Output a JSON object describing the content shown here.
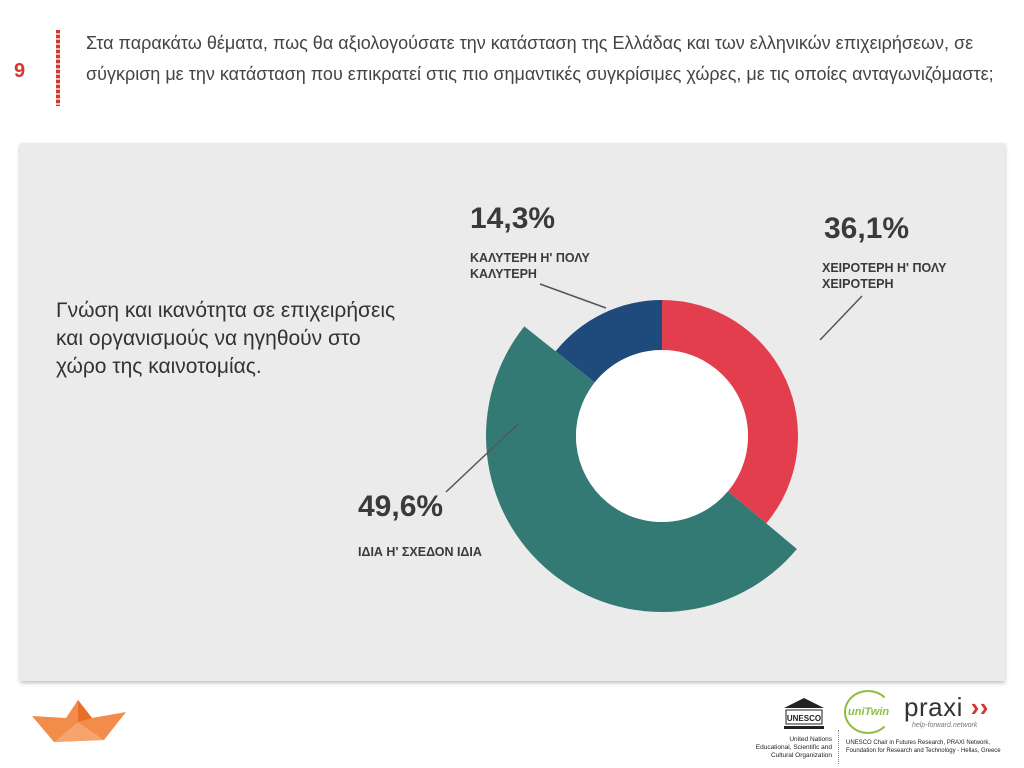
{
  "slide": {
    "number": "9",
    "question": "Στα παρακάτω θέματα, πως θα αξιολογούσατε την κατάσταση της Ελλάδας και των ελληνικών επιχειρήσεων, σε σύγκριση με την κατάσταση που επικρατεί στις πιο σημαντικές συγκρίσιμες χώρες, με τις οποίες ανταγωνιζόμαστε;",
    "topic": "Γνώση και ικανότητα σε επιχειρήσεις και οργανισμούς να ηγηθούν στο χώρο της καινοτομίας."
  },
  "chart_data": {
    "type": "pie",
    "style": "donut",
    "title": "Γνώση και ικανότητα σε επιχειρήσεις και οργανισμούς να ηγηθούν στο χώρο της καινοτομίας.",
    "segments": [
      {
        "name": "ΧΕΙΡΟΤΕΡΗ Η' ΠΟΛΥ ΧΕΙΡΟΤΕΡΗ",
        "label_lines": [
          "ΧΕΙΡΟΤΕΡΗ Η' ΠΟΛΥ",
          "ΧΕΙΡΟΤΕΡΗ"
        ],
        "value": 36.1,
        "display": "36,1%",
        "color": "#e23e4e",
        "exploded": false
      },
      {
        "name": "ΙΔΙΑ Η' ΣΧΕΔΟΝ ΙΔΙΑ",
        "label_lines": [
          "ΙΔΙΑ Η' ΣΧΕΔΟΝ ΙΔΙΑ"
        ],
        "value": 49.6,
        "display": "49,6%",
        "color": "#347a74",
        "exploded": true
      },
      {
        "name": "ΚΑΛΥΤΕΡΗ Η' ΠΟΛΥ ΚΑΛΥΤΕΡΗ",
        "label_lines": [
          "ΚΑΛΥΤΕΡΗ Η' ΠΟΛΥ",
          "ΚΑΛΥΤΕΡΗ"
        ],
        "value": 14.3,
        "display": "14,3%",
        "color": "#1f4a7c",
        "exploded": false
      }
    ]
  },
  "footer": {
    "unesco_logo_text": "UNESCO",
    "unesco_lines": [
      "United Nations",
      "Educational, Scientific and",
      "Cultural Organization"
    ],
    "unitwin_logo": "uniTwin",
    "praxi_logo": "praxi",
    "praxi_tagline": "help-forward.network",
    "chair_text": "UNESCO Chair in Futures Research, PRAXI Network, Foundation for Research and Technology - Hellas, Greece"
  },
  "colors": {
    "accent": "#d0392b",
    "panel": "#ebebeb",
    "boat": "#f28c4a"
  },
  "icons": {
    "boat": "paper-boat-icon",
    "unesco": "unesco-temple-icon"
  }
}
